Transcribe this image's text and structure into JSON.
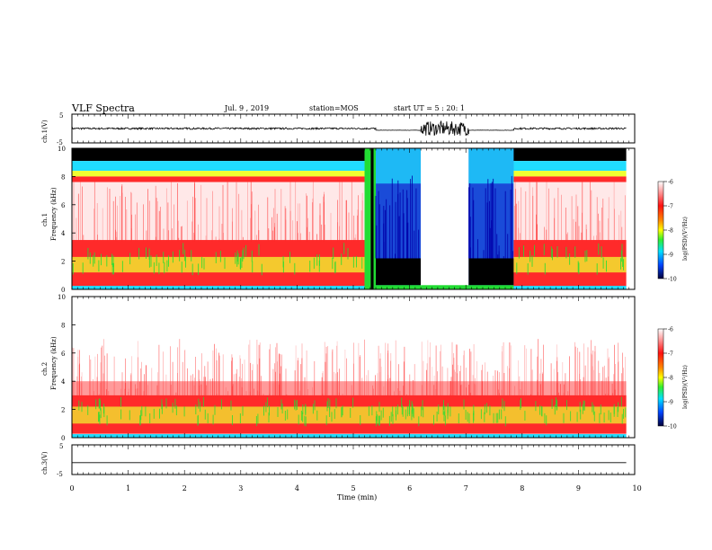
{
  "header": {
    "title": "VLF Spectra",
    "date": "Jul. 9 , 2019",
    "station": "station=MOS",
    "start": "start UT =  5 : 20: 1"
  },
  "colors": {
    "axis": "#000000",
    "noise_red": "#ff2a2a",
    "noise_yellow": "#f0ff30",
    "noise_green": "#22dd33",
    "band_cyan": "#20ddff",
    "deep_blue": "#0000aa",
    "black_band": "#000000"
  },
  "colorbar": {
    "label": "log(PSD)(V²/Hz)",
    "ticks": [
      "-6",
      "-7",
      "-8",
      "-9",
      "-10"
    ]
  },
  "chart_data": [
    {
      "type": "line",
      "panel": "waveform-ch1",
      "ylabel": "ch.1(V)",
      "yticks": [
        "5",
        "-5"
      ],
      "ylim": [
        -5,
        5
      ],
      "segments": [
        {
          "t_start": 0.0,
          "t_end": 5.4,
          "level": 0.0,
          "noise": 0.3
        },
        {
          "t_start": 5.4,
          "t_end": 6.2,
          "level": -0.6,
          "noise": 0.05
        },
        {
          "t_start": 6.2,
          "t_end": 7.05,
          "level": 0.0,
          "noise": 2.5
        },
        {
          "t_start": 7.05,
          "t_end": 7.85,
          "level": -0.6,
          "noise": 0.05
        },
        {
          "t_start": 7.85,
          "t_end": 9.85,
          "level": 0.0,
          "noise": 0.3
        }
      ]
    },
    {
      "type": "heatmap",
      "panel": "spectrogram-ch1",
      "ylabel": "ch.1\nFrequency (kHz)",
      "yticks": [
        "10",
        "8",
        "6",
        "4",
        "2",
        "0"
      ],
      "ylim": [
        0,
        10
      ],
      "regimes": [
        {
          "t_start": 0.0,
          "t_end": 5.2,
          "kind": "normal"
        },
        {
          "t_start": 5.2,
          "t_end": 5.4,
          "kind": "transition"
        },
        {
          "t_start": 5.4,
          "t_end": 6.2,
          "kind": "blue"
        },
        {
          "t_start": 6.2,
          "t_end": 7.05,
          "kind": "white"
        },
        {
          "t_start": 7.05,
          "t_end": 7.85,
          "kind": "blue"
        },
        {
          "t_start": 7.85,
          "t_end": 9.85,
          "kind": "normal"
        }
      ]
    },
    {
      "type": "heatmap",
      "panel": "spectrogram-ch2",
      "ylabel": "ch.2\nFrequency (kHz)",
      "yticks": [
        "10",
        "8",
        "6",
        "4",
        "2",
        "0"
      ],
      "ylim": [
        0,
        10
      ],
      "regimes": [
        {
          "t_start": 0.0,
          "t_end": 9.85,
          "kind": "quiet"
        }
      ]
    },
    {
      "type": "line",
      "panel": "waveform-ch3",
      "ylabel": "ch.3(V)",
      "yticks": [
        "5",
        "-5"
      ],
      "ylim": [
        -5,
        5
      ],
      "segments": [
        {
          "t_start": 0.0,
          "t_end": 9.85,
          "level": -1.0,
          "noise": 0.0
        }
      ]
    }
  ],
  "xaxis": {
    "label": "Time (min)",
    "ticks": [
      "0",
      "1",
      "2",
      "3",
      "4",
      "5",
      "6",
      "7",
      "8",
      "9",
      "10"
    ],
    "xlim": [
      0,
      10
    ]
  }
}
